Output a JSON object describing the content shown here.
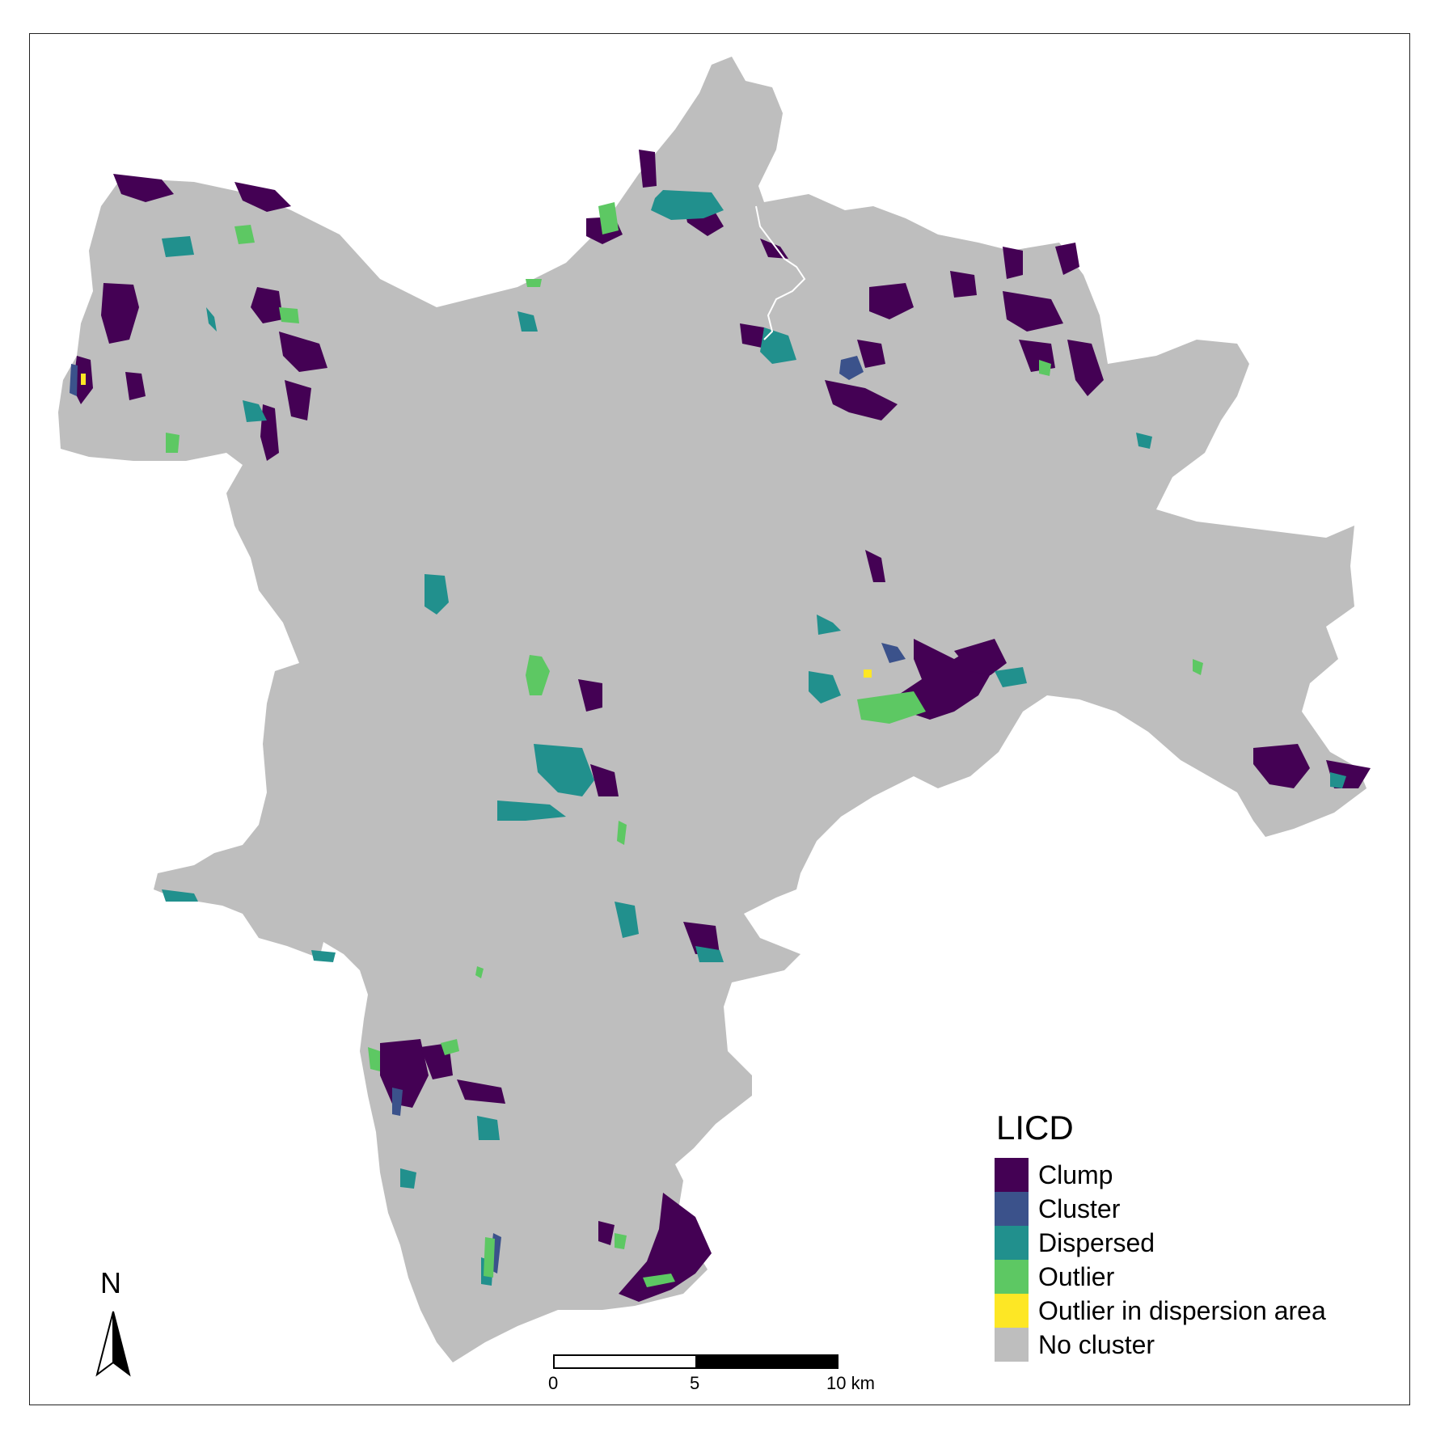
{
  "legend": {
    "title": "LICD",
    "items": [
      {
        "label": "Clump",
        "color": "#440154"
      },
      {
        "label": "Cluster",
        "color": "#3b528b"
      },
      {
        "label": "Dispersed",
        "color": "#21908d"
      },
      {
        "label": "Outlier",
        "color": "#5dc863"
      },
      {
        "label": "Outlier in dispersion area",
        "color": "#fde725"
      },
      {
        "label": "No cluster",
        "color": "#bebebe"
      }
    ]
  },
  "north_arrow": {
    "label": "N"
  },
  "scale_bar": {
    "labels": [
      "0",
      "5",
      "10 km"
    ]
  },
  "colors": {
    "clump": "#440154",
    "cluster": "#3b528b",
    "dispersed": "#21908d",
    "outlier": "#5dc863",
    "outlier_dispersion": "#fde725",
    "no_cluster": "#bebebe"
  }
}
